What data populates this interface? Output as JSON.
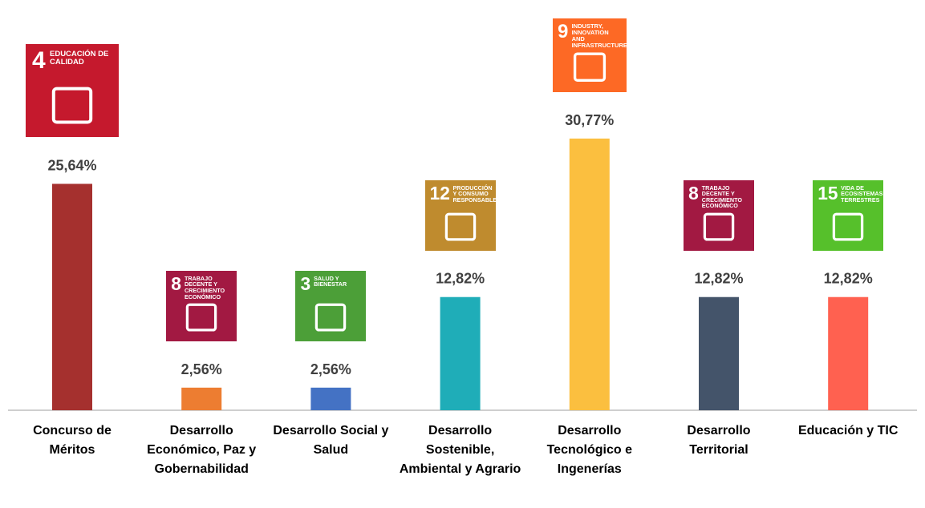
{
  "chart_data": {
    "type": "bar",
    "categories": [
      "Concurso de Méritos",
      "Desarrollo Económico, Paz y Gobernabilidad",
      "Desarrollo Social y Salud",
      "Desarrollo Sostenible, Ambiental y Agrario",
      "Desarrollo Tecnológico e Ingenerías",
      "Desarrollo Territorial",
      "Educación y TIC"
    ],
    "values": [
      25.64,
      2.56,
      2.56,
      12.82,
      30.77,
      12.82,
      12.82
    ],
    "value_labels": [
      "25,64%",
      "2,56%",
      "2,56%",
      "12,82%",
      "30,77%",
      "12,82%",
      "12,82%"
    ],
    "colors": [
      "#a5302e",
      "#ed7d31",
      "#4472c4",
      "#1fadb8",
      "#fbbf3f",
      "#44546a",
      "#ff6150"
    ],
    "icons": [
      {
        "number": "4",
        "label": "EDUCACIÓN DE CALIDAD",
        "color": "#c5192d"
      },
      {
        "number": "8",
        "label": "TRABAJO DECENTE Y CRECIMIENTO ECONÓMICO",
        "color": "#a21942"
      },
      {
        "number": "3",
        "label": "SALUD Y BIENESTAR",
        "color": "#4c9f38"
      },
      {
        "number": "12",
        "label": "PRODUCCIÓN Y CONSUMO RESPONSABLES",
        "color": "#bf8b2e"
      },
      {
        "number": "9",
        "label": "INDUSTRY, INNOVATION AND INFRASTRUCTURE",
        "color": "#fd6925"
      },
      {
        "number": "8",
        "label": "TRABAJO DECENTE Y CRECIMIENTO ECONÓMICO",
        "color": "#a21942"
      },
      {
        "number": "15",
        "label": "VIDA DE ECOSISTEMAS TERRESTRES",
        "color": "#56c02b"
      }
    ]
  }
}
